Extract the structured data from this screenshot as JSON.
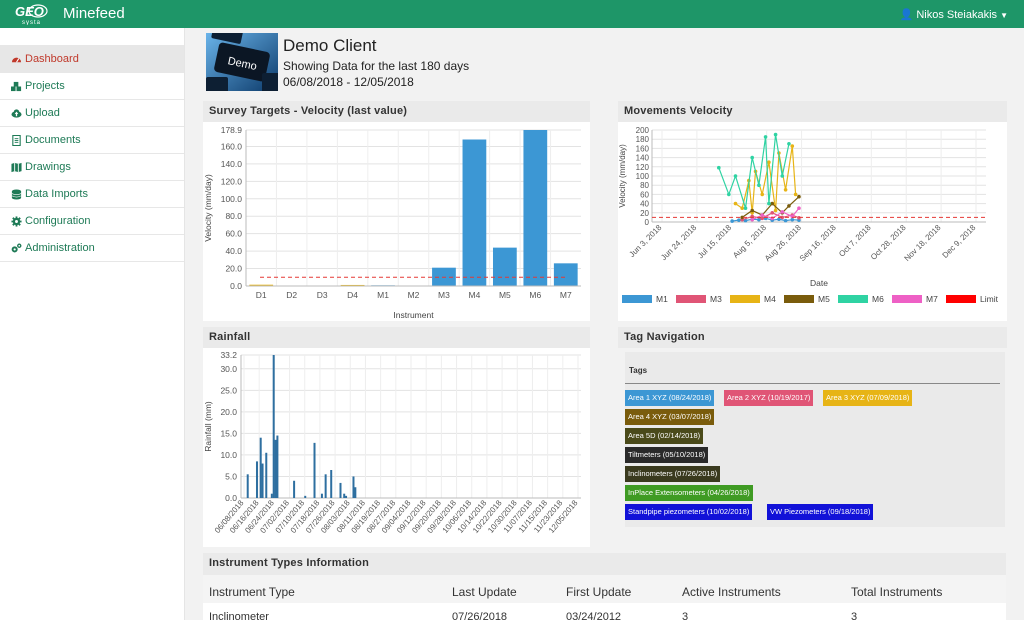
{
  "app": {
    "name": "Minefeed",
    "logo_text": "GEOsysta",
    "user": "Nikos Steiakakis"
  },
  "colors": {
    "brand": "#1e9668",
    "bar": "#3c97d4",
    "limit": "#e53935"
  },
  "sidebar": {
    "items": [
      {
        "label": "Dashboard",
        "icon": "tachometer-icon"
      },
      {
        "label": "Projects",
        "icon": "cubes-icon"
      },
      {
        "label": "Upload",
        "icon": "cloud-upload-icon"
      },
      {
        "label": "Documents",
        "icon": "file-text-icon"
      },
      {
        "label": "Drawings",
        "icon": "map-icon"
      },
      {
        "label": "Data Imports",
        "icon": "database-icon"
      },
      {
        "label": "Configuration",
        "icon": "gear-icon"
      },
      {
        "label": "Administration",
        "icon": "gears-icon"
      }
    ]
  },
  "client": {
    "image_text": "Demo",
    "title": "Demo Client",
    "subtitle": "Showing Data for the last 180 days",
    "range": "06/08/2018 - 12/05/2018"
  },
  "panels": {
    "survey": "Survey Targets - Velocity (last value)",
    "movements": "Movements Velocity",
    "rainfall": "Rainfall",
    "tags": "Tag Navigation"
  },
  "tags": {
    "header": "Tags",
    "items": [
      {
        "label": "Area 1 XYZ  (08/24/2018)",
        "color": "#3c97d4"
      },
      {
        "label": "Area 2 XYZ  (10/19/2017)",
        "color": "#e05576"
      },
      {
        "label": "Area 3 XYZ  (07/09/2018)",
        "color": "#e7b416"
      },
      {
        "label": "Area 4 XYZ  (03/07/2018)",
        "color": "#7a5c0c"
      },
      {
        "label": "Area 5D  (02/14/2018)",
        "color": "#4a4a1a"
      },
      {
        "label": "Tiltmeters  (05/10/2018)",
        "color": "#2a2a2a"
      },
      {
        "label": "Inclinometers  (07/26/2018)",
        "color": "#3a3a1e"
      },
      {
        "label": "InPlace Extensometers  (04/26/2018)",
        "color": "#3f9b23"
      },
      {
        "label": "Standpipe piezometers  (10/02/2018)",
        "color": "#1212d8"
      },
      {
        "label": "VW Piezometers  (09/18/2018)",
        "color": "#1212d8"
      }
    ]
  },
  "instrument_table": {
    "title": "Instrument Types Information",
    "headers": [
      "Instrument Type",
      "Last Update",
      "First Update",
      "Active Instruments",
      "Total Instruments"
    ],
    "rows": [
      [
        "Inclinometer",
        "07/26/2018",
        "03/24/2012",
        "3",
        "3"
      ]
    ]
  },
  "chart_data": [
    {
      "type": "bar",
      "id": "survey",
      "categories": [
        "D1",
        "D2",
        "D3",
        "D4",
        "M1",
        "M2",
        "M3",
        "M4",
        "M5",
        "M6",
        "M7"
      ],
      "values": [
        1.5,
        0,
        0,
        1.2,
        0.8,
        0,
        21,
        168,
        44,
        178.9,
        26
      ],
      "bar_colors": [
        "#e7b416",
        "#3c97d4",
        "#3c97d4",
        "#e7b416",
        "#3c97d4",
        "#3c97d4",
        "#3c97d4",
        "#3c97d4",
        "#3c97d4",
        "#3c97d4",
        "#3c97d4"
      ],
      "limit": 10,
      "xlabel": "Instrument",
      "ylabel": "Velocity (mm/day)",
      "ylim": [
        0,
        178.9
      ],
      "yticks": [
        "0.0",
        "20.0",
        "40.0",
        "60.0",
        "80.0",
        "100.0",
        "120.0",
        "140.0",
        "160.0",
        "178.9"
      ],
      "grid": true
    },
    {
      "type": "line",
      "id": "movements",
      "xlabel": "Date",
      "ylabel": "Velocity (mm/day)",
      "ylim": [
        0,
        200
      ],
      "yticks": [
        "0",
        "20",
        "40",
        "60",
        "80",
        "100",
        "120",
        "140",
        "160",
        "180",
        "200"
      ],
      "xticks": [
        "Jun 3, 2018",
        "Jun 24, 2018",
        "Jul 15, 2018",
        "Aug 5, 2018",
        "Aug 26, 2018",
        "Sep 16, 2018",
        "Oct 7, 2018",
        "Oct 28, 2018",
        "Nov 18, 2018",
        "Dec 9, 2018"
      ],
      "limit": 10,
      "legend_position": "bottom",
      "series": [
        {
          "name": "M1",
          "color": "#3c97d4",
          "x": [
            0.24,
            0.26,
            0.28,
            0.3,
            0.32,
            0.34,
            0.36,
            0.38,
            0.4,
            0.42,
            0.44
          ],
          "y": [
            2,
            4,
            3,
            6,
            5,
            8,
            4,
            6,
            3,
            5,
            4
          ]
        },
        {
          "name": "M3",
          "color": "#e05576",
          "x": [
            0.27,
            0.3,
            0.33,
            0.36,
            0.39,
            0.42,
            0.44
          ],
          "y": [
            5,
            12,
            8,
            20,
            10,
            15,
            9
          ]
        },
        {
          "name": "M4",
          "color": "#e7b416",
          "x": [
            0.25,
            0.27,
            0.29,
            0.3,
            0.31,
            0.33,
            0.35,
            0.37,
            0.38,
            0.4,
            0.42,
            0.43
          ],
          "y": [
            40,
            30,
            90,
            20,
            110,
            60,
            130,
            25,
            150,
            70,
            165,
            60
          ]
        },
        {
          "name": "M5",
          "color": "#7a5c0c",
          "x": [
            0.27,
            0.3,
            0.33,
            0.36,
            0.39,
            0.41,
            0.44
          ],
          "y": [
            10,
            25,
            15,
            40,
            20,
            35,
            55
          ]
        },
        {
          "name": "M6",
          "color": "#2fd3a3",
          "x": [
            0.2,
            0.23,
            0.25,
            0.28,
            0.3,
            0.32,
            0.34,
            0.35,
            0.37,
            0.39,
            0.41
          ],
          "y": [
            118,
            60,
            100,
            30,
            140,
            80,
            185,
            40,
            190,
            100,
            170
          ]
        },
        {
          "name": "M7",
          "color": "#ee60c5",
          "x": [
            0.3,
            0.33,
            0.36,
            0.39,
            0.42,
            0.44
          ],
          "y": [
            5,
            15,
            8,
            22,
            12,
            30
          ]
        }
      ],
      "limit_legend": "Limit"
    },
    {
      "type": "bar",
      "id": "rainfall",
      "xlabel": "Date",
      "ylabel": "Rainfall (mm)",
      "ylim": [
        0,
        33.2
      ],
      "yticks": [
        "0.0",
        "5.0",
        "10.0",
        "15.0",
        "20.0",
        "25.0",
        "30.0",
        "33.2"
      ],
      "xticks": [
        "06/08/2018",
        "06/16/2018",
        "06/24/2018",
        "07/02/2018",
        "07/10/2018",
        "07/18/2018",
        "07/26/2018",
        "08/03/2018",
        "08/11/2018",
        "08/19/2018",
        "08/27/2018",
        "09/04/2018",
        "09/12/2018",
        "09/20/2018",
        "09/28/2018",
        "10/06/2018",
        "10/14/2018",
        "10/22/2018",
        "10/30/2018",
        "11/07/2018",
        "11/15/2018",
        "11/23/2018",
        "12/05/2018"
      ],
      "day_index": [
        2,
        7,
        9,
        10,
        12,
        15,
        16,
        17,
        18,
        27,
        33,
        38,
        42,
        44,
        47,
        52,
        54,
        55,
        59,
        60
      ],
      "values": [
        5.5,
        8.5,
        14.0,
        8.0,
        10.5,
        1.0,
        33.2,
        13.5,
        14.5,
        4.0,
        0.5,
        12.8,
        1.0,
        5.5,
        6.5,
        3.5,
        1.0,
        0.5,
        5.0,
        2.5
      ],
      "days_total": 180,
      "grid": true
    }
  ]
}
